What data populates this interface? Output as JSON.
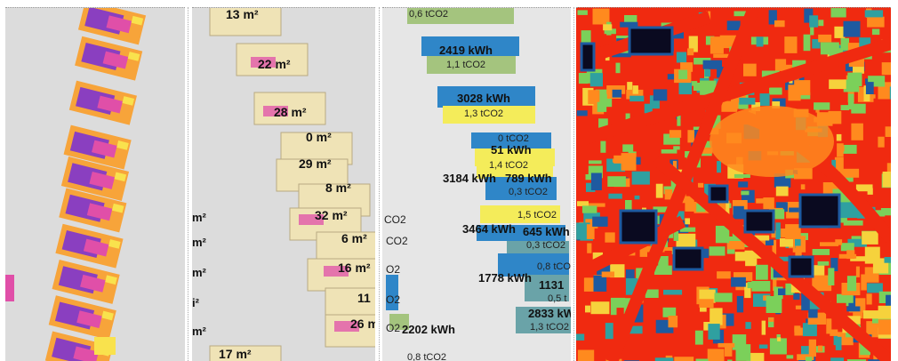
{
  "panel_area": {
    "edge_labels": [
      "m²",
      "m²",
      "m²",
      "i²",
      "m²"
    ],
    "labels": [
      {
        "text": "13 m²"
      },
      {
        "text": "22 m²"
      },
      {
        "text": "28 m²"
      },
      {
        "text": "0 m²"
      },
      {
        "text": "29 m²"
      },
      {
        "text": "8 m²"
      },
      {
        "text": "32 m²"
      },
      {
        "text": "6 m²"
      },
      {
        "text": "16 m²"
      },
      {
        "text": "11"
      },
      {
        "text": "26 m"
      },
      {
        "text": "17 m²"
      }
    ]
  },
  "panel_energy": {
    "edge_labels": [
      "CO2",
      "CO2",
      "O2",
      "O2",
      "O2"
    ],
    "labels": [
      {
        "kwh": "",
        "co2": "0,6 tCO2"
      },
      {
        "kwh": "2419 kWh",
        "co2": "1,1 tCO2"
      },
      {
        "kwh": "3028 kWh",
        "co2": "1,3 tCO2"
      },
      {
        "kwh": "51 kWh",
        "co2": "0 tCO2"
      },
      {
        "kwh": "",
        "co2": "1,4 tCO2"
      },
      {
        "kwh": "3184 kWh",
        "co2": ""
      },
      {
        "kwh": "789 kWh",
        "co2": "0,3 tCO2"
      },
      {
        "kwh": "",
        "co2": "1,5 tCO2"
      },
      {
        "kwh": "3464 kWh",
        "co2": ""
      },
      {
        "kwh": "645 kWh",
        "co2": "0,3 tCO2"
      },
      {
        "kwh": "",
        "co2": "0,8 tCO"
      },
      {
        "kwh": "1778 kWh",
        "co2": ""
      },
      {
        "kwh": "1131",
        "co2": "0,5 t"
      },
      {
        "kwh": "2833 kW",
        "co2": "1,3 tCO2"
      },
      {
        "kwh": "2202 kWh",
        "co2": "0,8 tCO2"
      }
    ]
  },
  "colors": {
    "roof_beige": "#efe3b6",
    "solar_purple": "#8a3fc0",
    "solar_magenta": "#e04fa8",
    "solar_orange": "#f7a43a",
    "solar_yellow": "#f9e24d",
    "energy_blue": "#2f86c8",
    "energy_green": "#a4c47e",
    "energy_yellow": "#f4ec5a",
    "energy_teal": "#6aa3a8",
    "thermal_red": "#f02a10",
    "thermal_orange": "#ff8a1e",
    "thermal_green": "#7bd05a",
    "thermal_blue": "#1e5aa0",
    "thermal_dark": "#0a0a20"
  }
}
